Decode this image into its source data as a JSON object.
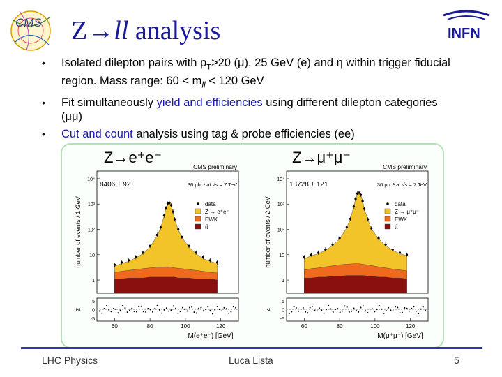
{
  "slide": {
    "title_prefix": "Z→",
    "title_ll": "ll",
    "title_suffix": " analysis",
    "logo_left": "CMS",
    "logo_right": "INFN",
    "bullets": {
      "b1": {
        "part1": "Isolated dilepton pairs with p",
        "sub_t": "T",
        "part2": ">20 (μ), 25 GeV (e) and η within trigger fiducial region. Mass range: 60 < m",
        "sub_ll": "ll",
        "part3": " < 120 GeV"
      },
      "b2": {
        "part1": "Fit simultaneously ",
        "hl1": "yield and efficiencies",
        "part2": " using different dilepton categories (μμ)"
      },
      "b3": {
        "hl1": "Cut and count",
        "part2": " analysis using tag & probe efficiencies (ee)"
      }
    },
    "footer": {
      "left": "LHC Physics",
      "center": "Luca Lista",
      "right": "5"
    },
    "colors": {
      "title": "#1a1a99",
      "highlight": "#1a1ab0",
      "frame": "#b8e0b8",
      "footer_line": "#3333aa",
      "z_fill": "#f3c42a",
      "ewk_fill": "#f06a1e",
      "tt_fill": "#8a1010"
    }
  },
  "chart_data": [
    {
      "type": "area",
      "title": "Z→e⁺e⁻",
      "label": "CMS preliminary",
      "yield_label": "8406 ± 92",
      "lumi_label": "36 pb⁻¹   at √s = 7 TeV",
      "xlabel": "M(e⁺e⁻) [GeV]",
      "ylabel": "number of events / 1 GeV",
      "residual_label": "Z",
      "y_log": true,
      "x_ticks": [
        "60",
        "80",
        "100",
        "120"
      ],
      "y_ticks": [
        "1",
        "10",
        "10²",
        "10³",
        "10⁴"
      ],
      "residual_ticks": [
        "5",
        "0",
        "-5"
      ],
      "legend": [
        "data",
        "Z → e⁺e⁻",
        "EWK",
        "tt̄"
      ],
      "xlim": [
        50,
        130
      ],
      "ylim": [
        0.3,
        20000
      ],
      "x": [
        60,
        64,
        68,
        72,
        76,
        80,
        84,
        86,
        88,
        89,
        90,
        91,
        92,
        93,
        94,
        96,
        98,
        102,
        106,
        110,
        114,
        118
      ],
      "series": [
        {
          "name": "data",
          "values": [
            4,
            5,
            6,
            8,
            12,
            22,
            60,
            120,
            350,
            700,
            1050,
            1100,
            900,
            500,
            250,
            100,
            50,
            22,
            12,
            8,
            6,
            5
          ]
        },
        {
          "name": "Z → e⁺e⁻",
          "values": [
            3.5,
            4.5,
            5.5,
            7.5,
            11,
            20,
            55,
            115,
            340,
            690,
            1040,
            1090,
            890,
            490,
            240,
            95,
            48,
            20,
            11,
            7,
            5.5,
            4.5
          ]
        },
        {
          "name": "EWK",
          "values": [
            2,
            2.2,
            2.4,
            2.6,
            2.8,
            3,
            3.2,
            3.2,
            3.3,
            3.3,
            3.3,
            3.3,
            3.2,
            3.1,
            3,
            2.9,
            2.8,
            2.6,
            2.4,
            2.2,
            2,
            1.9
          ]
        },
        {
          "name": "tt̄",
          "values": [
            1.1,
            1.1,
            1.2,
            1.2,
            1.2,
            1.3,
            1.3,
            1.3,
            1.3,
            1.3,
            1.3,
            1.3,
            1.3,
            1.3,
            1.3,
            1.2,
            1.2,
            1.2,
            1.1,
            1.1,
            1.1,
            1.0
          ]
        }
      ]
    },
    {
      "type": "area",
      "title": "Z→μ⁺μ⁻",
      "label": "CMS preliminary",
      "yield_label": "13728 ± 121",
      "lumi_label": "36 pb⁻¹   at √s = 7 TeV",
      "xlabel": "M(μ⁺μ⁻) [GeV]",
      "ylabel": "number of events / 2 GeV",
      "residual_label": "Z",
      "y_log": true,
      "x_ticks": [
        "60",
        "80",
        "100",
        "120"
      ],
      "y_ticks": [
        "1",
        "10",
        "10²",
        "10³",
        "10⁴"
      ],
      "residual_ticks": [
        "5",
        "0",
        "-5"
      ],
      "legend": [
        "data",
        "Z → μ⁺μ⁻",
        "EWK",
        "tt̄"
      ],
      "xlim": [
        50,
        130
      ],
      "ylim": [
        0.3,
        20000
      ],
      "x": [
        60,
        64,
        68,
        72,
        76,
        80,
        84,
        86,
        88,
        89,
        90,
        91,
        92,
        93,
        94,
        96,
        98,
        102,
        106,
        110,
        114,
        118
      ],
      "series": [
        {
          "name": "data",
          "values": [
            8,
            10,
            12,
            16,
            25,
            45,
            120,
            260,
            800,
            1600,
            2600,
            2800,
            2300,
            1300,
            650,
            250,
            110,
            45,
            25,
            16,
            12,
            10
          ]
        },
        {
          "name": "Z → μ⁺μ⁻",
          "values": [
            7,
            9,
            11,
            15,
            23,
            42,
            115,
            250,
            790,
            1590,
            2590,
            2790,
            2290,
            1290,
            640,
            240,
            105,
            42,
            23,
            15,
            11,
            9
          ]
        },
        {
          "name": "EWK",
          "values": [
            2.5,
            2.8,
            3,
            3.3,
            3.6,
            4,
            4.2,
            4.3,
            4.4,
            4.4,
            4.4,
            4.4,
            4.3,
            4.2,
            4.1,
            3.9,
            3.7,
            3.3,
            3,
            2.7,
            2.5,
            2.3
          ]
        },
        {
          "name": "tt̄",
          "values": [
            1.2,
            1.2,
            1.3,
            1.3,
            1.4,
            1.4,
            1.5,
            1.5,
            1.5,
            1.5,
            1.5,
            1.5,
            1.5,
            1.5,
            1.5,
            1.4,
            1.4,
            1.3,
            1.3,
            1.2,
            1.2,
            1.1
          ]
        }
      ]
    }
  ]
}
